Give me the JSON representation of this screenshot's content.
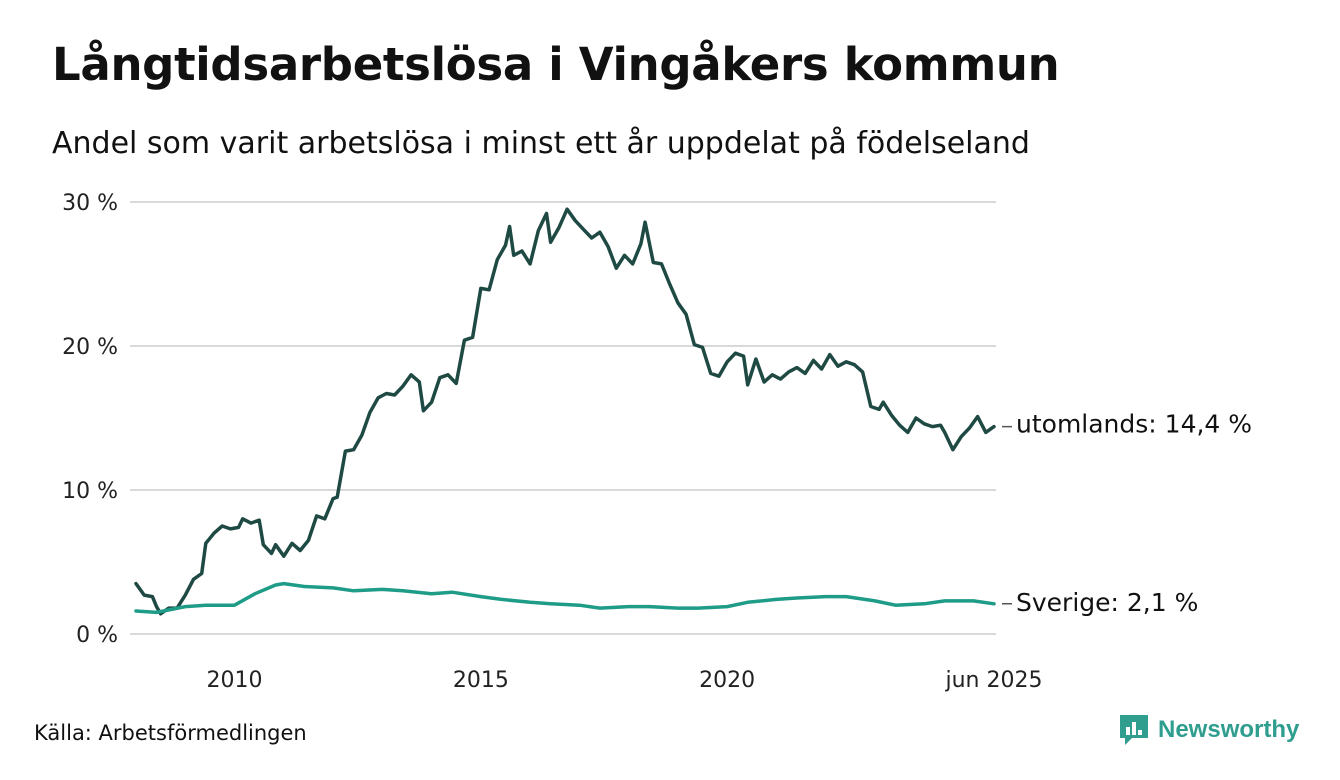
{
  "header": {
    "title": "Långtidsarbetslösa i Vingåkers kommun",
    "subtitle": "Andel som varit arbetslösa i minst ett år uppdelat på födelseland"
  },
  "footer": {
    "source": "Källa: Arbetsförmedlingen",
    "brand": "Newsworthy",
    "brand_icon": "newsworthy-logo-icon"
  },
  "colors": {
    "utomlands": "#1f4a44",
    "sverige": "#1f9c88",
    "grid": "#d9d9d9",
    "brand": "#2f9e8f"
  },
  "chart_data": {
    "type": "line",
    "title": "Långtidsarbetslösa i Vingåkers kommun",
    "subtitle": "Andel som varit arbetslösa i minst ett år uppdelat på födelseland",
    "xlabel": "",
    "ylabel": "",
    "x_range": [
      "2008-01",
      "2025-06"
    ],
    "ylim": [
      0,
      30
    ],
    "y_ticks": [
      0,
      10,
      20,
      30
    ],
    "y_tick_labels": [
      "0 %",
      "10 %",
      "20 %",
      "30 %"
    ],
    "x_ticks": [
      "2010-01",
      "2015-01",
      "2020-01",
      "2025-06"
    ],
    "x_tick_labels": [
      "2010",
      "2015",
      "2020",
      "jun 2025"
    ],
    "grid": true,
    "legend": "end-of-line labels",
    "series": [
      {
        "name": "utomlands",
        "end_label": "utomlands: 14,4 %",
        "points": [
          [
            "2008-01",
            3.5
          ],
          [
            "2008-03",
            2.7
          ],
          [
            "2008-05",
            2.6
          ],
          [
            "2008-06",
            1.9
          ],
          [
            "2008-07",
            1.4
          ],
          [
            "2008-09",
            1.8
          ],
          [
            "2008-11",
            1.8
          ],
          [
            "2009-01",
            2.7
          ],
          [
            "2009-03",
            3.8
          ],
          [
            "2009-05",
            4.2
          ],
          [
            "2009-06",
            6.3
          ],
          [
            "2009-08",
            7.0
          ],
          [
            "2009-10",
            7.5
          ],
          [
            "2009-12",
            7.3
          ],
          [
            "2010-02",
            7.4
          ],
          [
            "2010-03",
            8.0
          ],
          [
            "2010-05",
            7.7
          ],
          [
            "2010-07",
            7.9
          ],
          [
            "2010-08",
            6.2
          ],
          [
            "2010-10",
            5.6
          ],
          [
            "2010-11",
            6.2
          ],
          [
            "2011-01",
            5.4
          ],
          [
            "2011-03",
            6.3
          ],
          [
            "2011-05",
            5.8
          ],
          [
            "2011-07",
            6.5
          ],
          [
            "2011-09",
            8.2
          ],
          [
            "2011-11",
            8.0
          ],
          [
            "2012-01",
            9.4
          ],
          [
            "2012-02",
            9.5
          ],
          [
            "2012-04",
            12.7
          ],
          [
            "2012-06",
            12.8
          ],
          [
            "2012-08",
            13.8
          ],
          [
            "2012-10",
            15.4
          ],
          [
            "2012-12",
            16.4
          ],
          [
            "2013-02",
            16.7
          ],
          [
            "2013-04",
            16.6
          ],
          [
            "2013-06",
            17.2
          ],
          [
            "2013-08",
            18.0
          ],
          [
            "2013-10",
            17.5
          ],
          [
            "2013-11",
            15.5
          ],
          [
            "2014-01",
            16.1
          ],
          [
            "2014-03",
            17.8
          ],
          [
            "2014-05",
            18.0
          ],
          [
            "2014-07",
            17.4
          ],
          [
            "2014-09",
            20.4
          ],
          [
            "2014-11",
            20.6
          ],
          [
            "2015-01",
            24.0
          ],
          [
            "2015-03",
            23.9
          ],
          [
            "2015-05",
            26.0
          ],
          [
            "2015-07",
            27.0
          ],
          [
            "2015-08",
            28.3
          ],
          [
            "2015-09",
            26.3
          ],
          [
            "2015-11",
            26.6
          ],
          [
            "2016-01",
            25.7
          ],
          [
            "2016-03",
            28.0
          ],
          [
            "2016-05",
            29.2
          ],
          [
            "2016-06",
            27.2
          ],
          [
            "2016-08",
            28.2
          ],
          [
            "2016-10",
            29.5
          ],
          [
            "2016-12",
            28.7
          ],
          [
            "2017-02",
            28.1
          ],
          [
            "2017-04",
            27.5
          ],
          [
            "2017-06",
            27.9
          ],
          [
            "2017-08",
            26.9
          ],
          [
            "2017-10",
            25.4
          ],
          [
            "2017-12",
            26.3
          ],
          [
            "2018-02",
            25.7
          ],
          [
            "2018-04",
            27.1
          ],
          [
            "2018-05",
            28.6
          ],
          [
            "2018-07",
            25.8
          ],
          [
            "2018-09",
            25.7
          ],
          [
            "2018-11",
            24.3
          ],
          [
            "2019-01",
            23.0
          ],
          [
            "2019-03",
            22.2
          ],
          [
            "2019-05",
            20.1
          ],
          [
            "2019-07",
            19.9
          ],
          [
            "2019-09",
            18.1
          ],
          [
            "2019-11",
            17.9
          ],
          [
            "2020-01",
            18.9
          ],
          [
            "2020-03",
            19.5
          ],
          [
            "2020-05",
            19.3
          ],
          [
            "2020-06",
            17.3
          ],
          [
            "2020-08",
            19.1
          ],
          [
            "2020-10",
            17.5
          ],
          [
            "2020-12",
            18.0
          ],
          [
            "2021-02",
            17.7
          ],
          [
            "2021-04",
            18.2
          ],
          [
            "2021-06",
            18.5
          ],
          [
            "2021-08",
            18.1
          ],
          [
            "2021-10",
            19.0
          ],
          [
            "2021-12",
            18.4
          ],
          [
            "2022-02",
            19.4
          ],
          [
            "2022-04",
            18.6
          ],
          [
            "2022-06",
            18.9
          ],
          [
            "2022-08",
            18.7
          ],
          [
            "2022-10",
            18.2
          ],
          [
            "2022-12",
            15.8
          ],
          [
            "2023-02",
            15.6
          ],
          [
            "2023-03",
            16.1
          ],
          [
            "2023-05",
            15.2
          ],
          [
            "2023-07",
            14.5
          ],
          [
            "2023-09",
            14.0
          ],
          [
            "2023-11",
            15.0
          ],
          [
            "2024-01",
            14.6
          ],
          [
            "2024-03",
            14.4
          ],
          [
            "2024-05",
            14.5
          ],
          [
            "2024-06",
            14.0
          ],
          [
            "2024-08",
            12.8
          ],
          [
            "2024-10",
            13.7
          ],
          [
            "2024-12",
            14.3
          ],
          [
            "2025-02",
            15.1
          ],
          [
            "2025-04",
            14.0
          ],
          [
            "2025-06",
            14.4
          ]
        ]
      },
      {
        "name": "Sverige",
        "end_label": "Sverige:  2,1 %",
        "points": [
          [
            "2008-01",
            1.6
          ],
          [
            "2008-06",
            1.5
          ],
          [
            "2009-01",
            1.9
          ],
          [
            "2009-06",
            2.0
          ],
          [
            "2010-01",
            2.0
          ],
          [
            "2010-06",
            2.8
          ],
          [
            "2010-11",
            3.4
          ],
          [
            "2011-01",
            3.5
          ],
          [
            "2011-06",
            3.3
          ],
          [
            "2012-01",
            3.2
          ],
          [
            "2012-06",
            3.0
          ],
          [
            "2013-01",
            3.1
          ],
          [
            "2013-06",
            3.0
          ],
          [
            "2014-01",
            2.8
          ],
          [
            "2014-06",
            2.9
          ],
          [
            "2015-01",
            2.6
          ],
          [
            "2015-06",
            2.4
          ],
          [
            "2016-01",
            2.2
          ],
          [
            "2016-06",
            2.1
          ],
          [
            "2017-01",
            2.0
          ],
          [
            "2017-06",
            1.8
          ],
          [
            "2018-01",
            1.9
          ],
          [
            "2018-06",
            1.9
          ],
          [
            "2019-01",
            1.8
          ],
          [
            "2019-06",
            1.8
          ],
          [
            "2020-01",
            1.9
          ],
          [
            "2020-06",
            2.2
          ],
          [
            "2021-01",
            2.4
          ],
          [
            "2021-06",
            2.5
          ],
          [
            "2022-01",
            2.6
          ],
          [
            "2022-06",
            2.6
          ],
          [
            "2023-01",
            2.3
          ],
          [
            "2023-06",
            2.0
          ],
          [
            "2024-01",
            2.1
          ],
          [
            "2024-06",
            2.3
          ],
          [
            "2025-01",
            2.3
          ],
          [
            "2025-06",
            2.1
          ]
        ]
      }
    ]
  }
}
